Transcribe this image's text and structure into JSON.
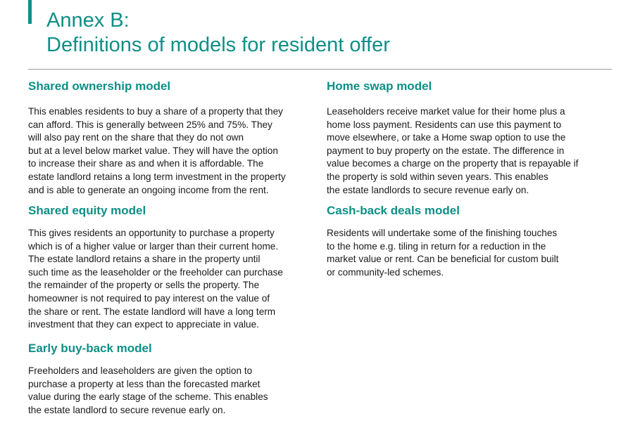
{
  "header": {
    "title_line1": "Annex B:",
    "title_line2": "Definitions of models for resident offer",
    "accent_color": "#0e8f86"
  },
  "sections": {
    "shared_ownership": {
      "heading": "Shared ownership model",
      "lines": [
        "This enables residents to buy a share of a property that they",
        "can afford. This is generally between 25% and 75%. They",
        "will also pay rent on the share that they do not own",
        "but at a level below market value. They will have the option",
        "to increase their share as and when it is affordable. The",
        "estate landlord retains a long term investment in the property",
        "and is able to generate an ongoing income from the rent."
      ]
    },
    "shared_equity": {
      "heading": "Shared equity model",
      "lines": [
        "This gives residents an opportunity to purchase a property",
        "which is of a higher value or larger than their current home.",
        "The estate landlord retains a share in the property until",
        "such time as the leaseholder or the freeholder can purchase",
        "the remainder of the property or sells the property. The",
        "homeowner is not required to pay interest on the value of",
        "the share or rent. The estate landlord will have a long term",
        "investment that they can expect to appreciate in value."
      ]
    },
    "early_buyback": {
      "heading": "Early buy-back model",
      "lines": [
        "Freeholders and leaseholders are given the option to",
        "purchase a property at less than the forecasted market",
        "value during the early stage of the scheme. This enables",
        "the estate landlord to secure revenue early on."
      ]
    },
    "home_swap": {
      "heading": "Home swap model",
      "lines": [
        "Leaseholders receive market value for their home plus a",
        "home loss payment. Residents can use this payment to",
        "move elsewhere, or take a Home swap option to use the",
        "payment to buy property on the estate. The difference in",
        "value becomes a charge on the property that is repayable if",
        "the property is sold within seven years. This enables",
        "the estate landlords to secure revenue early on."
      ]
    },
    "cash_back": {
      "heading": "Cash-back deals model",
      "lines": [
        "Residents will undertake some of the finishing touches",
        "to the home e.g. tiling in return for a reduction in the",
        "market value or rent. Can be beneficial for custom built",
        "or community-led schemes."
      ]
    }
  }
}
